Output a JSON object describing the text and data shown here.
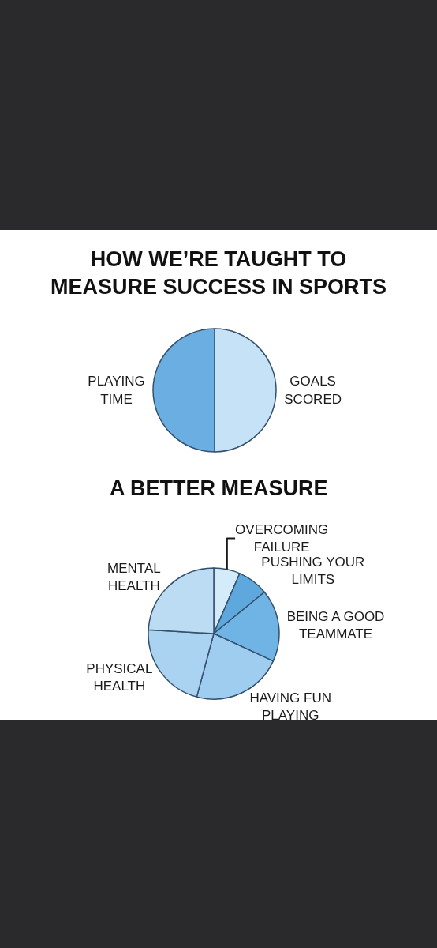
{
  "chart_data": [
    {
      "type": "pie",
      "title": "HOW WE’RE TAUGHT TO MEASURE SUCCESS IN SPORTS",
      "categories": [
        "GOALS SCORED",
        "PLAYING TIME"
      ],
      "values": [
        50,
        50
      ],
      "colors": [
        "#c6e2f6",
        "#6aaee2"
      ]
    },
    {
      "type": "pie",
      "title": "A BETTER MEASURE",
      "categories": [
        "OVERCOMING FAILURE",
        "PUSHING YOUR LIMITS",
        "BEING A GOOD TEAMMATE",
        "HAVING FUN PLAYING",
        "PHYSICAL HEALTH",
        "MENTAL HEALTH"
      ],
      "values": [
        6.5,
        7.6,
        17.8,
        22.3,
        21.7,
        24.1
      ],
      "colors": [
        "#d4ebf9",
        "#5fa8de",
        "#70b4e5",
        "#9fcdf0",
        "#aad3f1",
        "#bcdcf4"
      ]
    }
  ]
}
